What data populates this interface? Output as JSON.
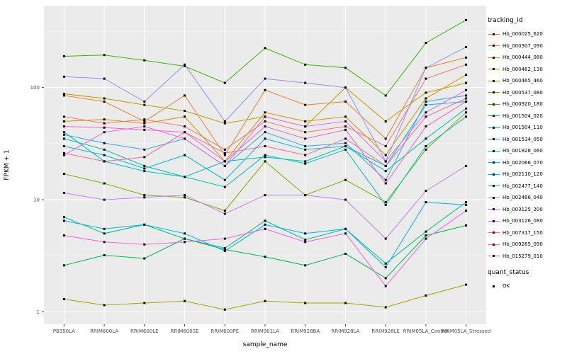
{
  "chart_data": {
    "type": "line",
    "title": "",
    "xlabel": "sample_name",
    "ylabel": "FPKM + 1",
    "y_scale": "log10",
    "y_ticks": [
      1,
      10,
      100
    ],
    "y_minor_ticks": [
      3.162,
      31.62,
      316.2
    ],
    "ylim_log10": [
      -0.11,
      2.73
    ],
    "panel_bg": "#EBEBEB",
    "grid_color": "#FFFFFF",
    "point_color": "#000000",
    "legend_title": "tracking_id",
    "quant_legend": {
      "title": "quant_status",
      "entries": [
        {
          "label": "OK",
          "marker": "black-square"
        }
      ]
    },
    "categories": [
      "PB350LA",
      "RRIM600LA",
      "RRIM600LE",
      "RRIM600SE",
      "RRIM600PE",
      "RRIM901LA",
      "RRIM928BA",
      "RRIM928LA",
      "RRIM928LE",
      "RRIM05LA_Control",
      "RRIM05LA_Stressed"
    ],
    "series": [
      {
        "name": "Hb_000025_620",
        "color": "#F8766D",
        "values": [
          55,
          48,
          52,
          45,
          28,
          50,
          40,
          45,
          30,
          120,
          160
        ]
      },
      {
        "name": "Hb_000307_090",
        "color": "#EA8331",
        "values": [
          85,
          75,
          50,
          85,
          25,
          95,
          70,
          75,
          35,
          150,
          185
        ]
      },
      {
        "name": "Hb_000444_080",
        "color": "#D89000",
        "values": [
          50,
          52,
          48,
          55,
          22,
          60,
          50,
          55,
          25,
          80,
          130
        ]
      },
      {
        "name": "Hb_000462_130",
        "color": "#C09B00",
        "values": [
          88,
          80,
          70,
          62,
          48,
          55,
          45,
          100,
          50,
          90,
          110
        ]
      },
      {
        "name": "Hb_000465_460",
        "color": "#A3A500",
        "values": [
          1.3,
          1.15,
          1.2,
          1.25,
          1.05,
          1.25,
          1.2,
          1.2,
          1.1,
          1.4,
          1.75
        ]
      },
      {
        "name": "Hb_000537_080",
        "color": "#7CAE00",
        "values": [
          17,
          14,
          11,
          10.5,
          8,
          22,
          11,
          15,
          9.5,
          28,
          60
        ]
      },
      {
        "name": "Hb_000920_180",
        "color": "#39B600",
        "values": [
          190,
          195,
          175,
          155,
          110,
          225,
          160,
          150,
          85,
          250,
          400
        ]
      },
      {
        "name": "Hb_001504_020",
        "color": "#00BB4E",
        "values": [
          2.6,
          3.2,
          3.0,
          4.5,
          3.6,
          3.1,
          2.6,
          3.3,
          2.0,
          4.8,
          5.9
        ]
      },
      {
        "name": "Hb_001504_110",
        "color": "#00BF7D",
        "values": [
          7,
          5,
          6,
          4.5,
          3.7,
          6.5,
          4.4,
          5.5,
          2.7,
          5.2,
          9.5
        ]
      },
      {
        "name": "Hb_001534_050",
        "color": "#00C1A3",
        "values": [
          35,
          28,
          20,
          16,
          22,
          24,
          22,
          30,
          18,
          35,
          65
        ]
      },
      {
        "name": "Hb_001828_060",
        "color": "#00BFC4",
        "values": [
          40,
          22,
          18,
          16,
          13,
          25,
          21,
          28,
          9,
          30,
          55
        ]
      },
      {
        "name": "Hb_002066_070",
        "color": "#00BBDA",
        "values": [
          30,
          25,
          19,
          25,
          15,
          35,
          28,
          30,
          20,
          70,
          75
        ]
      },
      {
        "name": "Hb_002110_120",
        "color": "#00B0F6",
        "values": [
          6.5,
          5.5,
          6,
          5,
          3.5,
          6,
          5,
          5.5,
          2.5,
          9.5,
          9
        ]
      },
      {
        "name": "Hb_002477_140",
        "color": "#35A2FF",
        "values": [
          38,
          32,
          28,
          35,
          20,
          40,
          30,
          32,
          15,
          75,
          85
        ]
      },
      {
        "name": "Hb_002486_040",
        "color": "#9590FF",
        "values": [
          125,
          120,
          75,
          160,
          50,
          120,
          110,
          100,
          22,
          150,
          230
        ]
      },
      {
        "name": "Hb_003125_200",
        "color": "#C77CFF",
        "values": [
          11.5,
          10,
          10.5,
          11,
          7.5,
          11,
          11,
          10,
          4.5,
          12,
          20
        ]
      },
      {
        "name": "Hb_003126_080",
        "color": "#E76BF3",
        "values": [
          25,
          40,
          45,
          35,
          20,
          55,
          45,
          50,
          22,
          60,
          95
        ]
      },
      {
        "name": "Hb_007317_150",
        "color": "#FA62DB",
        "values": [
          4.8,
          4.2,
          4.0,
          4.2,
          4.5,
          5.5,
          4.2,
          5.0,
          1.7,
          4.5,
          8
        ]
      },
      {
        "name": "Hb_009265_090",
        "color": "#FF62BC",
        "values": [
          45,
          44,
          42,
          40,
          22,
          45,
          35,
          42,
          14,
          45,
          75
        ]
      },
      {
        "name": "Hb_015279_010",
        "color": "#FF6A98",
        "values": [
          26,
          22,
          24,
          40,
          26,
          30,
          25,
          35,
          20,
          55,
          80
        ]
      }
    ]
  }
}
